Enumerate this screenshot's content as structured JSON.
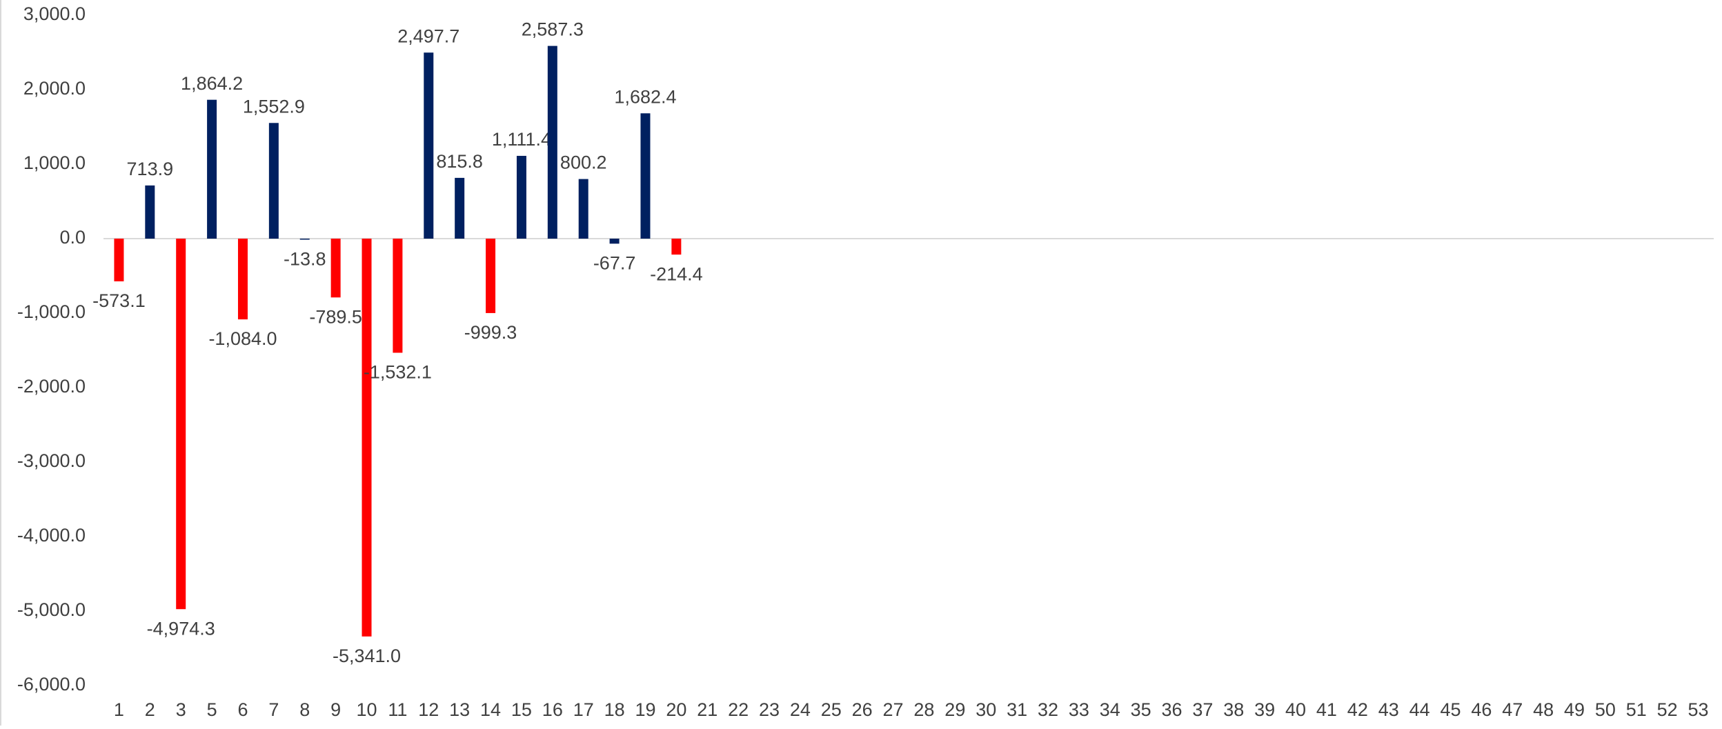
{
  "chart_data": {
    "type": "bar",
    "categories": [
      "1",
      "2",
      "3",
      "5",
      "6",
      "7",
      "8",
      "9",
      "10",
      "11",
      "12",
      "13",
      "14",
      "15",
      "16",
      "17",
      "18",
      "19",
      "20",
      "21",
      "22",
      "23",
      "24",
      "25",
      "26",
      "27",
      "28",
      "29",
      "30",
      "31",
      "32",
      "33",
      "34",
      "35",
      "36",
      "37",
      "38",
      "39",
      "40",
      "41",
      "42",
      "43",
      "44",
      "45",
      "46",
      "47",
      "48",
      "49",
      "50",
      "51",
      "52",
      "53"
    ],
    "values": [
      -573.1,
      713.9,
      -4974.3,
      1864.2,
      -1084.0,
      1552.9,
      -13.8,
      -789.5,
      -5341.0,
      -1532.1,
      2497.7,
      815.8,
      -999.3,
      1111.4,
      2587.3,
      800.2,
      -67.7,
      1682.4,
      -214.4,
      null,
      null,
      null,
      null,
      null,
      null,
      null,
      null,
      null,
      null,
      null,
      null,
      null,
      null,
      null,
      null,
      null,
      null,
      null,
      null,
      null,
      null,
      null,
      null,
      null,
      null,
      null,
      null,
      null,
      null,
      null,
      null,
      null
    ],
    "value_labels": [
      "-573.1",
      "713.9",
      "-4,974.3",
      "1,864.2",
      "-1,084.0",
      "1,552.9",
      "-13.8",
      "-789.5",
      "-5,341.0",
      "-1,532.1",
      "2,497.7",
      "815.8",
      "-999.3",
      "1,111.4",
      "2,587.3",
      "800.2",
      "-67.7",
      "1,682.4",
      "-214.4",
      null,
      null,
      null,
      null,
      null,
      null,
      null,
      null,
      null,
      null,
      null,
      null,
      null,
      null,
      null,
      null,
      null,
      null,
      null,
      null,
      null,
      null,
      null,
      null,
      null,
      null,
      null,
      null,
      null,
      null,
      null,
      null,
      null
    ],
    "colors": [
      "#ff0000",
      "#002060",
      "#ff0000",
      "#002060",
      "#ff0000",
      "#002060",
      "#002060",
      "#ff0000",
      "#ff0000",
      "#ff0000",
      "#002060",
      "#002060",
      "#ff0000",
      "#002060",
      "#002060",
      "#002060",
      "#002060",
      "#002060",
      "#ff0000",
      null,
      null,
      null,
      null,
      null,
      null,
      null,
      null,
      null,
      null,
      null,
      null,
      null,
      null,
      null,
      null,
      null,
      null,
      null,
      null,
      null,
      null,
      null,
      null,
      null,
      null,
      null,
      null,
      null,
      null,
      null,
      null,
      null
    ],
    "ylim": [
      -6000,
      3000
    ],
    "yticks": [
      {
        "value": -6000,
        "label": "-6,000.0"
      },
      {
        "value": -5000,
        "label": "-5,000.0"
      },
      {
        "value": -4000,
        "label": "-4,000.0"
      },
      {
        "value": -3000,
        "label": "-3,000.0"
      },
      {
        "value": -2000,
        "label": "-2,000.0"
      },
      {
        "value": -1000,
        "label": "-1,000.0"
      },
      {
        "value": 0,
        "label": "0.0"
      },
      {
        "value": 1000,
        "label": "1,000.0"
      },
      {
        "value": 2000,
        "label": "2,000.0"
      },
      {
        "value": 3000,
        "label": "3,000.0"
      }
    ],
    "grid": false
  }
}
